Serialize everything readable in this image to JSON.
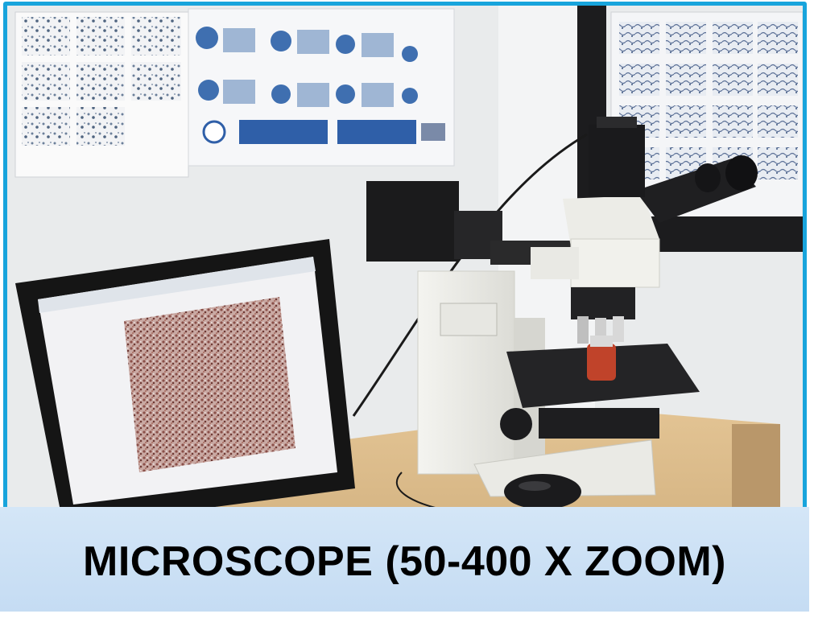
{
  "caption": {
    "text": "MICROSCOPE (50-400 X ZOOM)"
  },
  "colors": {
    "frame_border": "#18a4dc",
    "caption_bg": "#c9def4",
    "caption_text": "#000000",
    "poster_blue": "#2f5fa8",
    "specimen_tone": "#a0645a"
  },
  "objects": [
    "wall-posters-icon",
    "computer-monitor-icon",
    "microscope-icon",
    "camera-module-icon",
    "computer-mouse-icon",
    "desk-icon"
  ]
}
